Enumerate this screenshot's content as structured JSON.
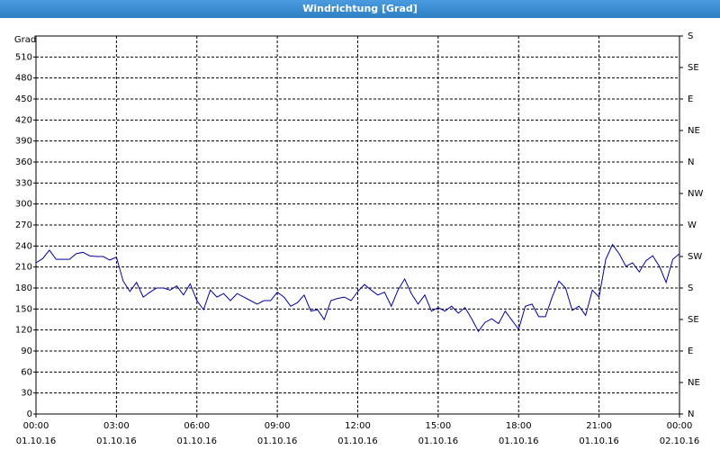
{
  "chart_data": {
    "type": "line",
    "title": "Windrichtung [Grad]",
    "ylabel": "Grad",
    "x": [
      0,
      0.25,
      0.5,
      0.75,
      1,
      1.25,
      1.5,
      1.75,
      2,
      2.25,
      2.5,
      2.75,
      3,
      3.25,
      3.5,
      3.75,
      4,
      4.25,
      4.5,
      4.75,
      5,
      5.25,
      5.5,
      5.75,
      6,
      6.25,
      6.5,
      6.75,
      7,
      7.25,
      7.5,
      7.75,
      8,
      8.25,
      8.5,
      8.75,
      9,
      9.25,
      9.5,
      9.75,
      10,
      10.25,
      10.5,
      10.75,
      11,
      11.25,
      11.5,
      11.75,
      12,
      12.25,
      12.5,
      12.75,
      13,
      13.25,
      13.5,
      13.75,
      14,
      14.25,
      14.5,
      14.75,
      15,
      15.25,
      15.5,
      15.75,
      16,
      16.25,
      16.5,
      16.75,
      17,
      17.25,
      17.5,
      17.75,
      18,
      18.25,
      18.5,
      18.75,
      19,
      19.25,
      19.5,
      19.75,
      20,
      20.25,
      20.5,
      20.75,
      21,
      21.25,
      21.5,
      21.75,
      22,
      22.25,
      22.5,
      22.75,
      23,
      23.25,
      23.5,
      23.75,
      24
    ],
    "series": [
      {
        "name": "Windrichtung",
        "color": "#0000a0",
        "values": [
          216,
          222,
          234,
          221,
          221,
          221,
          229,
          231,
          226,
          225,
          225,
          220,
          224,
          190,
          175,
          188,
          167,
          174,
          180,
          180,
          177,
          183,
          170,
          186,
          162,
          149,
          177,
          167,
          172,
          162,
          172,
          167,
          162,
          157,
          162,
          162,
          174,
          167,
          154,
          159,
          170,
          147,
          149,
          135,
          162,
          165,
          167,
          162,
          175,
          185,
          177,
          170,
          174,
          154,
          177,
          193,
          172,
          157,
          170,
          147,
          152,
          147,
          154,
          144,
          152,
          136,
          118,
          131,
          136,
          129,
          147,
          134,
          121,
          154,
          157,
          139,
          139,
          167,
          190,
          180,
          148,
          154,
          141,
          177,
          167,
          221,
          242,
          229,
          211,
          216,
          203,
          219,
          226,
          211,
          188,
          221,
          229
        ]
      }
    ],
    "xlim": [
      0,
      24
    ],
    "xticks": [
      {
        "value": 0,
        "label": "00:00"
      },
      {
        "value": 3,
        "label": "03:00"
      },
      {
        "value": 6,
        "label": "06:00"
      },
      {
        "value": 9,
        "label": "09:00"
      },
      {
        "value": 12,
        "label": "12:00"
      },
      {
        "value": 15,
        "label": "15:00"
      },
      {
        "value": 18,
        "label": "18:00"
      },
      {
        "value": 21,
        "label": "21:00"
      },
      {
        "value": 24,
        "label": "00:00"
      }
    ],
    "xtick_dates": [
      "01.10.16",
      "01.10.16",
      "01.10.16",
      "01.10.16",
      "01.10.16",
      "01.10.16",
      "01.10.16",
      "01.10.16",
      "02.10.16"
    ],
    "ylim": [
      0,
      540
    ],
    "yticks": [
      0,
      30,
      60,
      90,
      120,
      150,
      180,
      210,
      240,
      270,
      300,
      330,
      360,
      390,
      420,
      450,
      480,
      510
    ],
    "y2lim": [
      0,
      540
    ],
    "y2ticks": [
      {
        "value": 0,
        "label": "N"
      },
      {
        "value": 45,
        "label": "NE"
      },
      {
        "value": 90,
        "label": "E"
      },
      {
        "value": 135,
        "label": "SE"
      },
      {
        "value": 180,
        "label": "S"
      },
      {
        "value": 225,
        "label": "SW"
      },
      {
        "value": 270,
        "label": "W"
      },
      {
        "value": 315,
        "label": "NW"
      },
      {
        "value": 360,
        "label": "N"
      },
      {
        "value": 405,
        "label": "NE"
      },
      {
        "value": 450,
        "label": "E"
      },
      {
        "value": 495,
        "label": "SE"
      },
      {
        "value": 540,
        "label": "S"
      }
    ],
    "grid": true
  }
}
